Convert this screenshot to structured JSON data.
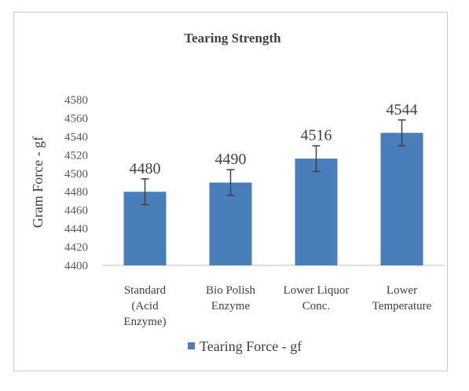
{
  "chart_data": {
    "type": "bar",
    "title": "Tearing Strength",
    "ylabel": "Gram Force - gf",
    "xlabel": "",
    "categories": [
      [
        "Standard",
        "(Acid",
        "Enzyme)"
      ],
      [
        "Bio Polish",
        "Enzyme"
      ],
      [
        "Lower Liquor",
        "Conc."
      ],
      [
        "Lower",
        "Temperature"
      ]
    ],
    "series": [
      {
        "name": "Tearing Force - gf",
        "values": [
          4480,
          4490,
          4516,
          4544
        ],
        "error": [
          14,
          14,
          14,
          14
        ],
        "color": "#4a7ebb"
      }
    ],
    "data_labels": [
      "4480",
      "4490",
      "4516",
      "4544"
    ],
    "ylim": [
      4400,
      4580
    ],
    "yticks": [
      4400,
      4420,
      4440,
      4460,
      4480,
      4500,
      4520,
      4540,
      4560,
      4580
    ],
    "grid": false,
    "legend_position": "bottom"
  }
}
